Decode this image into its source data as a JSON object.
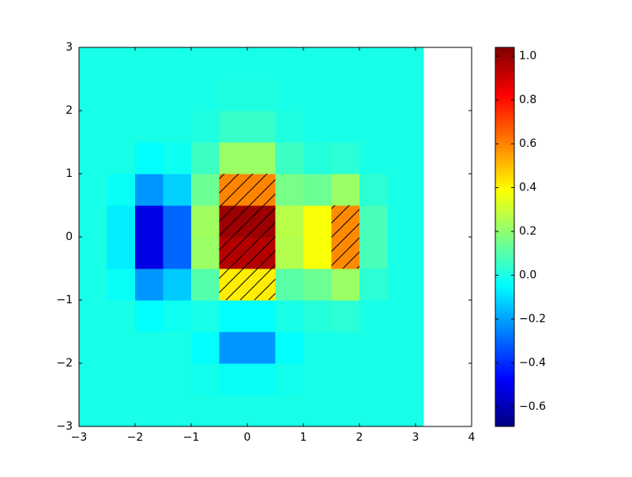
{
  "chart_data": {
    "type": "heatmap",
    "colormap": "jet",
    "xbins": [
      -3,
      -2.5,
      -2,
      -1.5,
      -1,
      -0.5,
      0,
      0.5,
      1,
      1.5,
      2,
      2.5,
      3,
      3.14
    ],
    "ybins": [
      -3,
      -2.5,
      -2,
      -1.5,
      -1,
      -0.5,
      0,
      0.5,
      1,
      1.5,
      2,
      2.5,
      3
    ],
    "values": [
      [
        0,
        0,
        0,
        0,
        0,
        0,
        0,
        0,
        0,
        0,
        0,
        0,
        0
      ],
      [
        0,
        0,
        0,
        0,
        -0.01,
        -0.03,
        -0.03,
        -0.01,
        0,
        0,
        0,
        0,
        0
      ],
      [
        0,
        0,
        0,
        0,
        -0.04,
        -0.22,
        -0.22,
        -0.04,
        0,
        0,
        0,
        0,
        0
      ],
      [
        0,
        0,
        -0.04,
        -0.02,
        0,
        -0.04,
        -0.04,
        0,
        0.02,
        0.03,
        0,
        0,
        0
      ],
      [
        0,
        -0.03,
        -0.22,
        -0.13,
        0.1,
        0.42,
        0.42,
        0.11,
        0.14,
        0.22,
        0.03,
        0,
        0
      ],
      [
        0,
        -0.07,
        -0.52,
        -0.3,
        0.22,
        0.95,
        0.95,
        0.26,
        0.38,
        0.59,
        0.08,
        0,
        0
      ],
      [
        0,
        -0.07,
        -0.52,
        -0.3,
        0.23,
        0.99,
        0.99,
        0.27,
        0.38,
        0.59,
        0.08,
        0,
        0
      ],
      [
        0,
        -0.03,
        -0.22,
        -0.12,
        0.14,
        0.6,
        0.6,
        0.16,
        0.14,
        0.22,
        0.03,
        0,
        0
      ],
      [
        0,
        0,
        -0.04,
        -0.02,
        0.06,
        0.22,
        0.22,
        0.06,
        0.02,
        0.03,
        0,
        0,
        0
      ],
      [
        0,
        0,
        0,
        0,
        0.01,
        0.05,
        0.05,
        0.01,
        0,
        0,
        0,
        0,
        0
      ],
      [
        0,
        0,
        0,
        0,
        0,
        0.01,
        0.01,
        0,
        0,
        0,
        0,
        0,
        0
      ],
      [
        0,
        0,
        0,
        0,
        0,
        0,
        0,
        0,
        0,
        0,
        0,
        0,
        0
      ]
    ],
    "zlim": [
      -0.69,
      1.04
    ],
    "hatch": "/",
    "hatch_levels": [
      0.4,
      1.04
    ],
    "xlim": [
      -3,
      4
    ],
    "ylim": [
      -3,
      3
    ],
    "xticks": [
      {
        "value": -3,
        "label": "−3"
      },
      {
        "value": -2,
        "label": "−2"
      },
      {
        "value": -1,
        "label": "−1"
      },
      0,
      1,
      2,
      3,
      4
    ],
    "yticks": [
      {
        "value": -3,
        "label": "−3"
      },
      {
        "value": -2,
        "label": "−2"
      },
      {
        "value": -1,
        "label": "−1"
      },
      0,
      1,
      2,
      3
    ],
    "colorbar_ticks": [
      {
        "value": -0.6,
        "label": "−0.6"
      },
      {
        "value": -0.4,
        "label": "−0.4"
      },
      {
        "value": -0.2,
        "label": "−0.2"
      },
      {
        "value": 0,
        "label": "0.0"
      },
      0.2,
      0.4,
      0.6,
      0.8,
      {
        "value": 1,
        "label": "1.0"
      }
    ]
  }
}
